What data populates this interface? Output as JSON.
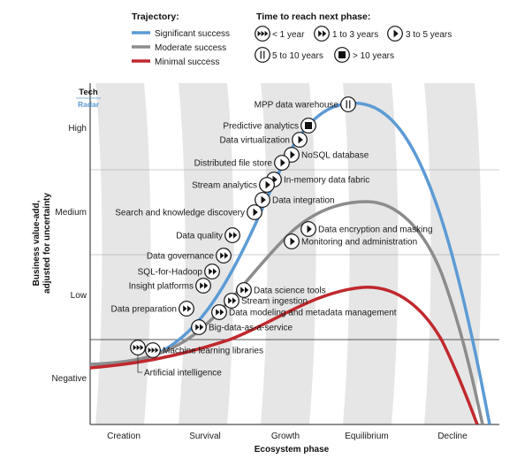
{
  "legend": {
    "trajectory_title": "Trajectory:",
    "trajectories": [
      {
        "label": "Significant success",
        "color": "#5b9bd5"
      },
      {
        "label": "Moderate success",
        "color": "#8c8c8c"
      },
      {
        "label": "Minimal success",
        "color": "#c0282d"
      }
    ],
    "time_title": "Time to reach next phase:",
    "times": [
      {
        "key": "lt1",
        "label": "< 1 year"
      },
      {
        "key": "1to3",
        "label": "1 to 3 years"
      },
      {
        "key": "3to5",
        "label": "3 to 5 years"
      },
      {
        "key": "5to10",
        "label": "5 to 10 years"
      },
      {
        "key": "gt10",
        "label": "> 10 years"
      }
    ]
  },
  "logo": {
    "line1": "Tech",
    "line2": "Radar"
  },
  "y_axis": {
    "title_line1": "Business value-add,",
    "title_line2": "adjusted for uncertainty",
    "levels": [
      "High",
      "Medium",
      "Low",
      "Negative"
    ]
  },
  "x_axis": {
    "title": "Ecosystem phase",
    "phases": [
      "Creation",
      "Survival",
      "Growth",
      "Equilibrium",
      "Decline"
    ]
  },
  "technologies": [
    {
      "label": "MPP data warehouse",
      "time": "5to10"
    },
    {
      "label": "Predictive analytics",
      "time": "gt10"
    },
    {
      "label": "Data virtualization",
      "time": "3to5"
    },
    {
      "label": "NoSQL database",
      "time": "3to5"
    },
    {
      "label": "Distributed file store",
      "time": "3to5"
    },
    {
      "label": "In-memory data fabric",
      "time": "3to5"
    },
    {
      "label": "Stream analytics",
      "time": "3to5"
    },
    {
      "label": "Data integration",
      "time": "3to5"
    },
    {
      "label": "Search and knowledge discovery",
      "time": "3to5"
    },
    {
      "label": "Data quality",
      "time": "1to3"
    },
    {
      "label": "Data encryption and masking",
      "time": "3to5"
    },
    {
      "label": "Monitoring and administration",
      "time": "3to5"
    },
    {
      "label": "Data governance",
      "time": "1to3"
    },
    {
      "label": "SQL-for-Hadoop",
      "time": "1to3"
    },
    {
      "label": "Insight platforms",
      "time": "1to3"
    },
    {
      "label": "Data science tools",
      "time": "1to3"
    },
    {
      "label": "Stream ingestion",
      "time": "1to3"
    },
    {
      "label": "Data preparation",
      "time": "1to3"
    },
    {
      "label": "Data modeling and metadata management",
      "time": "1to3"
    },
    {
      "label": "Big-data-as-a-service",
      "time": "1to3"
    },
    {
      "label": "Machine learning libraries",
      "time": "lt1"
    },
    {
      "label": "Artificial intelligence",
      "time": "lt1"
    }
  ]
}
